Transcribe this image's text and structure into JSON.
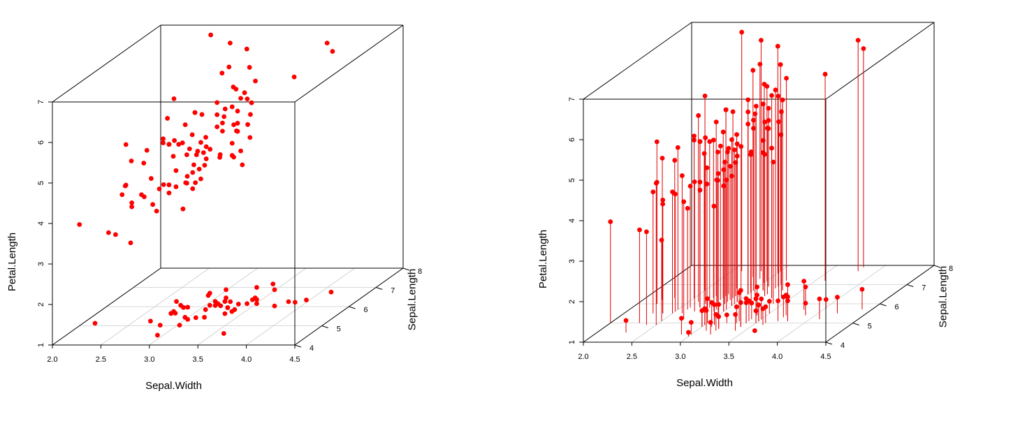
{
  "colors": {
    "point": "#ff0000",
    "stem": "#e00000",
    "box": "#000000",
    "grid": "#cccccc"
  },
  "chart_data": [
    {
      "type": "scatter3d",
      "style": "points",
      "xlabel": "Sepal.Width",
      "ylabel": "Sepal.Length",
      "zlabel": "Petal.Length",
      "xlim": [
        2.0,
        4.5
      ],
      "ylim": [
        4,
        8
      ],
      "zlim": [
        1,
        7
      ],
      "x_ticks": [
        "2.0",
        "2.5",
        "3.0",
        "3.5",
        "4.0",
        "4.5"
      ],
      "y_ticks": [
        "4",
        "5",
        "6",
        "7",
        "8"
      ],
      "z_ticks": [
        "1",
        "2",
        "3",
        "4",
        "5",
        "6",
        "7"
      ],
      "grid": "floor",
      "points_note": "iris: x=Sepal.Width, y=Sepal.Length, z=Petal.Length"
    },
    {
      "type": "scatter3d",
      "style": "points+vertical-lines",
      "xlabel": "Sepal.Width",
      "ylabel": "Sepal.Length",
      "zlabel": "Petal.Length",
      "xlim": [
        2.0,
        4.5
      ],
      "ylim": [
        4,
        8
      ],
      "zlim": [
        1,
        7
      ],
      "x_ticks": [
        "2.0",
        "2.5",
        "3.0",
        "3.5",
        "4.0",
        "4.5"
      ],
      "y_ticks": [
        "4",
        "5",
        "6",
        "7",
        "8"
      ],
      "z_ticks": [
        "1",
        "2",
        "3",
        "4",
        "5",
        "6",
        "7"
      ],
      "grid": "floor"
    }
  ],
  "points": [
    [
      3.5,
      5.1,
      1.4
    ],
    [
      3.0,
      4.9,
      1.4
    ],
    [
      3.2,
      4.7,
      1.3
    ],
    [
      3.1,
      4.6,
      1.5
    ],
    [
      3.6,
      5.0,
      1.4
    ],
    [
      3.9,
      5.4,
      1.7
    ],
    [
      3.4,
      4.6,
      1.4
    ],
    [
      3.4,
      5.0,
      1.5
    ],
    [
      2.9,
      4.4,
      1.4
    ],
    [
      3.1,
      4.9,
      1.5
    ],
    [
      3.7,
      5.4,
      1.5
    ],
    [
      3.4,
      4.8,
      1.6
    ],
    [
      3.0,
      4.8,
      1.4
    ],
    [
      3.0,
      4.3,
      1.1
    ],
    [
      4.0,
      5.8,
      1.2
    ],
    [
      4.4,
      5.7,
      1.5
    ],
    [
      3.9,
      5.4,
      1.3
    ],
    [
      3.5,
      5.1,
      1.4
    ],
    [
      3.8,
      5.7,
      1.7
    ],
    [
      3.8,
      5.1,
      1.5
    ],
    [
      3.4,
      5.4,
      1.7
    ],
    [
      3.7,
      5.1,
      1.5
    ],
    [
      3.6,
      4.6,
      1.0
    ],
    [
      3.3,
      5.1,
      1.7
    ],
    [
      3.4,
      4.8,
      1.9
    ],
    [
      3.0,
      5.0,
      1.6
    ],
    [
      3.4,
      5.0,
      1.6
    ],
    [
      3.5,
      5.2,
      1.5
    ],
    [
      3.4,
      5.2,
      1.4
    ],
    [
      3.2,
      4.7,
      1.6
    ],
    [
      3.1,
      4.8,
      1.6
    ],
    [
      3.4,
      5.4,
      1.5
    ],
    [
      4.1,
      5.2,
      1.5
    ],
    [
      4.2,
      5.5,
      1.4
    ],
    [
      3.1,
      4.9,
      1.5
    ],
    [
      3.2,
      5.0,
      1.2
    ],
    [
      3.5,
      5.5,
      1.3
    ],
    [
      3.6,
      4.9,
      1.4
    ],
    [
      3.0,
      4.4,
      1.3
    ],
    [
      3.4,
      5.1,
      1.5
    ],
    [
      3.5,
      5.0,
      1.3
    ],
    [
      2.3,
      4.5,
      1.3
    ],
    [
      3.2,
      4.4,
      1.3
    ],
    [
      3.5,
      5.0,
      1.6
    ],
    [
      3.8,
      5.1,
      1.9
    ],
    [
      3.0,
      4.8,
      1.4
    ],
    [
      3.8,
      5.1,
      1.6
    ],
    [
      3.2,
      4.6,
      1.4
    ],
    [
      3.7,
      5.3,
      1.5
    ],
    [
      3.3,
      5.0,
      1.4
    ],
    [
      3.2,
      7.0,
      4.7
    ],
    [
      3.2,
      6.4,
      4.5
    ],
    [
      3.1,
      6.9,
      4.9
    ],
    [
      2.3,
      5.5,
      4.0
    ],
    [
      2.8,
      6.5,
      4.6
    ],
    [
      2.8,
      5.7,
      4.5
    ],
    [
      3.3,
      6.3,
      4.7
    ],
    [
      2.4,
      4.9,
      3.3
    ],
    [
      2.9,
      6.6,
      4.6
    ],
    [
      2.7,
      5.2,
      3.9
    ],
    [
      2.0,
      5.0,
      3.5
    ],
    [
      3.0,
      5.9,
      4.2
    ],
    [
      2.2,
      6.0,
      4.0
    ],
    [
      2.9,
      6.1,
      4.7
    ],
    [
      2.9,
      5.6,
      3.6
    ],
    [
      3.1,
      6.7,
      4.4
    ],
    [
      3.0,
      5.6,
      4.5
    ],
    [
      2.7,
      5.8,
      4.1
    ],
    [
      2.2,
      6.2,
      4.5
    ],
    [
      2.5,
      5.6,
      3.9
    ],
    [
      3.2,
      5.9,
      4.8
    ],
    [
      2.8,
      6.1,
      4.0
    ],
    [
      2.5,
      6.3,
      4.9
    ],
    [
      2.8,
      6.1,
      4.7
    ],
    [
      2.9,
      6.4,
      4.3
    ],
    [
      3.0,
      6.6,
      4.4
    ],
    [
      2.8,
      6.8,
      4.8
    ],
    [
      3.0,
      6.7,
      5.0
    ],
    [
      2.9,
      6.0,
      4.5
    ],
    [
      2.6,
      5.7,
      3.5
    ],
    [
      2.4,
      5.5,
      3.8
    ],
    [
      2.4,
      5.5,
      3.7
    ],
    [
      2.7,
      5.8,
      3.9
    ],
    [
      2.7,
      6.0,
      5.1
    ],
    [
      3.0,
      5.4,
      4.5
    ],
    [
      3.4,
      6.0,
      4.5
    ],
    [
      3.1,
      6.7,
      4.7
    ],
    [
      2.3,
      6.3,
      4.4
    ],
    [
      3.0,
      5.6,
      4.1
    ],
    [
      2.5,
      5.5,
      4.0
    ],
    [
      2.6,
      5.5,
      4.4
    ],
    [
      3.0,
      6.1,
      4.6
    ],
    [
      2.6,
      5.8,
      4.0
    ],
    [
      2.3,
      5.0,
      3.3
    ],
    [
      2.7,
      5.6,
      4.2
    ],
    [
      3.0,
      5.7,
      4.2
    ],
    [
      2.9,
      5.7,
      4.2
    ],
    [
      2.9,
      6.2,
      4.3
    ],
    [
      2.5,
      5.1,
      3.0
    ],
    [
      2.8,
      5.7,
      4.1
    ],
    [
      3.3,
      6.3,
      6.0
    ],
    [
      2.7,
      5.8,
      5.1
    ],
    [
      3.0,
      7.1,
      5.9
    ],
    [
      2.9,
      6.3,
      5.6
    ],
    [
      3.0,
      6.5,
      5.8
    ],
    [
      3.0,
      7.6,
      6.6
    ],
    [
      2.5,
      4.9,
      4.5
    ],
    [
      2.9,
      7.3,
      6.3
    ],
    [
      2.5,
      6.7,
      5.8
    ],
    [
      3.6,
      7.2,
      6.1
    ],
    [
      3.2,
      6.5,
      5.1
    ],
    [
      2.7,
      6.4,
      5.3
    ],
    [
      3.0,
      6.8,
      5.5
    ],
    [
      2.5,
      5.7,
      5.0
    ],
    [
      2.8,
      5.8,
      5.1
    ],
    [
      3.2,
      6.4,
      5.3
    ],
    [
      3.0,
      6.5,
      5.5
    ],
    [
      3.8,
      7.7,
      6.7
    ],
    [
      2.6,
      7.7,
      6.9
    ],
    [
      2.2,
      6.0,
      5.0
    ],
    [
      3.2,
      6.9,
      5.7
    ],
    [
      2.8,
      5.6,
      4.9
    ],
    [
      2.8,
      7.7,
      6.7
    ],
    [
      2.7,
      6.3,
      4.9
    ],
    [
      3.3,
      6.7,
      5.7
    ],
    [
      3.2,
      7.2,
      6.0
    ],
    [
      2.8,
      6.2,
      4.8
    ],
    [
      3.0,
      6.1,
      4.9
    ],
    [
      2.8,
      6.4,
      5.6
    ],
    [
      3.0,
      7.2,
      5.8
    ],
    [
      2.8,
      7.4,
      6.1
    ],
    [
      3.8,
      7.9,
      6.4
    ],
    [
      2.8,
      6.4,
      5.6
    ],
    [
      2.8,
      6.3,
      5.1
    ],
    [
      2.6,
      6.1,
      5.6
    ],
    [
      3.0,
      7.7,
      6.1
    ],
    [
      3.4,
      6.3,
      5.6
    ],
    [
      3.1,
      6.4,
      5.5
    ],
    [
      3.0,
      6.0,
      4.8
    ],
    [
      3.1,
      6.9,
      5.4
    ],
    [
      3.1,
      6.7,
      5.6
    ],
    [
      3.1,
      6.9,
      5.1
    ],
    [
      2.7,
      5.8,
      5.1
    ],
    [
      3.2,
      6.8,
      5.9
    ],
    [
      3.3,
      6.7,
      5.7
    ],
    [
      3.0,
      6.7,
      5.2
    ],
    [
      2.5,
      6.3,
      5.0
    ],
    [
      3.0,
      6.5,
      5.2
    ],
    [
      3.4,
      6.2,
      5.4
    ],
    [
      3.0,
      5.9,
      5.1
    ]
  ]
}
